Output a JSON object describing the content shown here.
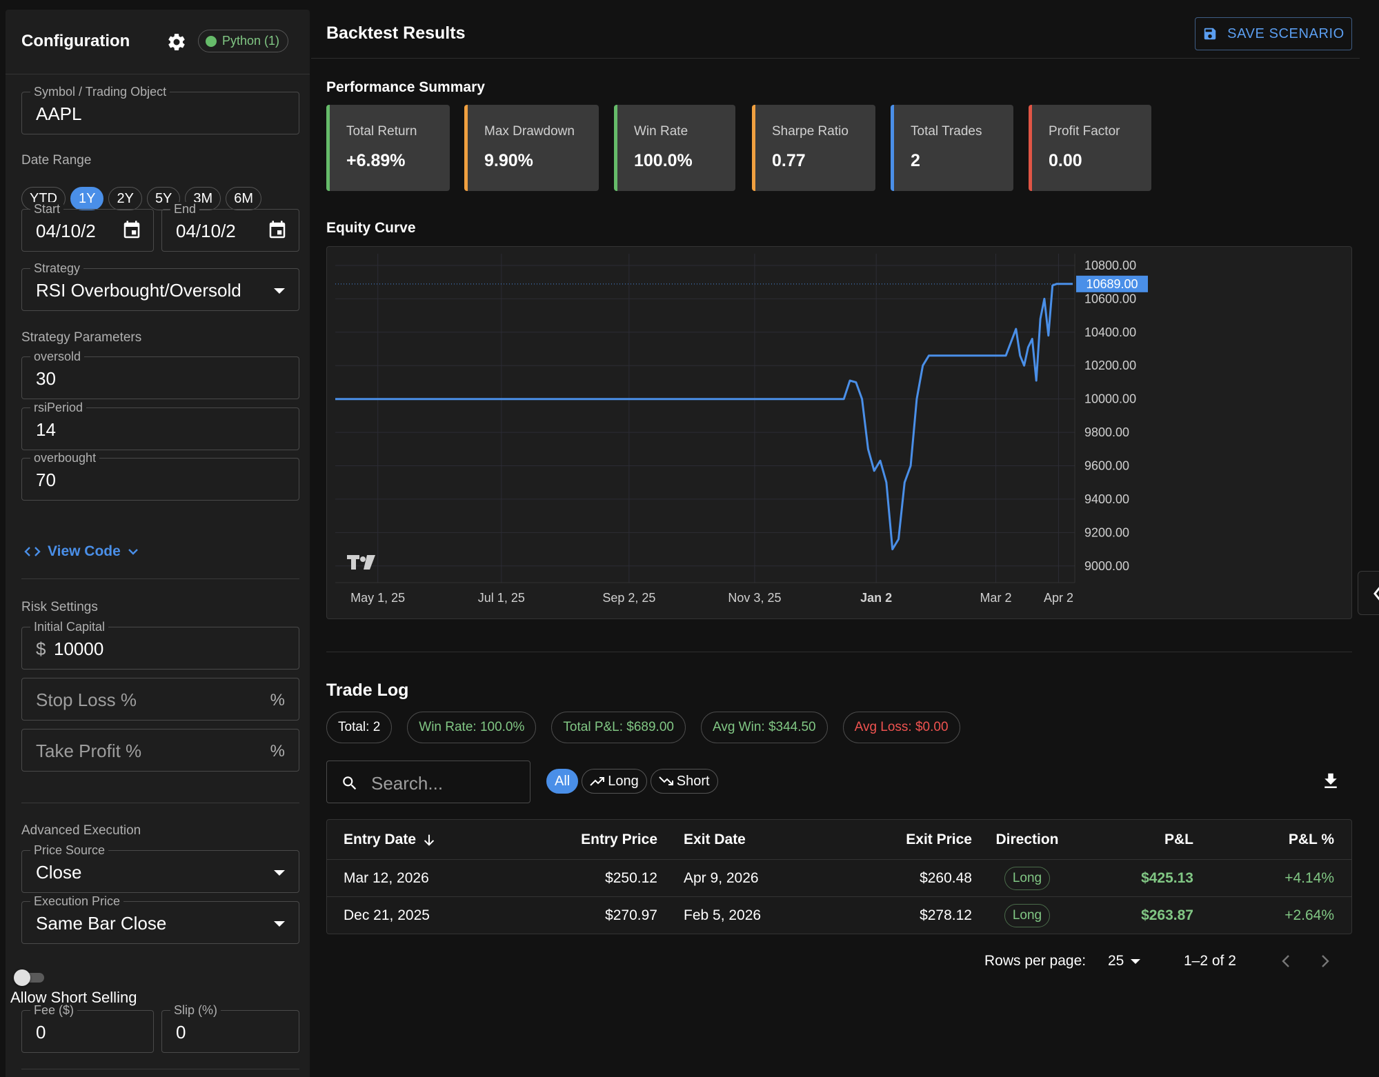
{
  "sidebar": {
    "title": "Configuration",
    "runtime_chip": "Python (1)",
    "symbol": {
      "label": "Symbol / Trading Object",
      "value": "AAPL"
    },
    "date_range": {
      "label": "Date Range",
      "presets": [
        "YTD",
        "1Y",
        "2Y",
        "5Y",
        "3M",
        "6M"
      ],
      "active_preset": "1Y",
      "start": {
        "label": "Start",
        "value": "04/10/2"
      },
      "end": {
        "label": "End",
        "value": "04/10/2"
      }
    },
    "strategy": {
      "label": "Strategy",
      "value": "RSI Overbought/Oversold"
    },
    "params_label": "Strategy Parameters",
    "params": [
      {
        "label": "oversold",
        "value": "30"
      },
      {
        "label": "rsiPeriod",
        "value": "14"
      },
      {
        "label": "overbought",
        "value": "70"
      }
    ],
    "view_code": "View Code",
    "risk": {
      "label": "Risk Settings",
      "initial_capital": {
        "label": "Initial Capital",
        "prefix": "$",
        "value": "10000"
      },
      "stop_loss": {
        "placeholder": "Stop Loss %",
        "suffix": "%"
      },
      "take_profit": {
        "placeholder": "Take Profit %",
        "suffix": "%"
      }
    },
    "advanced": {
      "label": "Advanced Execution",
      "price_source": {
        "label": "Price Source",
        "value": "Close"
      },
      "execution_price": {
        "label": "Execution Price",
        "value": "Same Bar Close"
      },
      "short_selling": {
        "label": "Allow Short Selling",
        "enabled": false
      },
      "fee": {
        "label": "Fee ($)",
        "value": "0"
      },
      "slip": {
        "label": "Slip (%)",
        "value": "0"
      }
    }
  },
  "main": {
    "title": "Backtest Results",
    "save_button": "SAVE SCENARIO",
    "performance_label": "Performance Summary",
    "kpis": [
      {
        "label": "Total Return",
        "value": "+6.89%",
        "color": "#66bb6a"
      },
      {
        "label": "Max Drawdown",
        "value": "9.90%",
        "color": "#f0a040"
      },
      {
        "label": "Win Rate",
        "value": "100.0%",
        "color": "#66bb6a"
      },
      {
        "label": "Sharpe Ratio",
        "value": "0.77",
        "color": "#f0a040"
      },
      {
        "label": "Total Trades",
        "value": "2",
        "color": "#4a8fe8"
      },
      {
        "label": "Profit Factor",
        "value": "0.00",
        "color": "#e05545"
      }
    ],
    "equity_label": "Equity Curve",
    "trade_log": {
      "title": "Trade Log",
      "stats": [
        {
          "label": "Total: 2",
          "color": "#ffffff"
        },
        {
          "label": "Win Rate: 100.0%",
          "color": "#81c784"
        },
        {
          "label": "Total P&L: $689.00",
          "color": "#81c784"
        },
        {
          "label": "Avg Win: $344.50",
          "color": "#81c784"
        },
        {
          "label": "Avg Loss: $0.00",
          "color": "#ef5350"
        }
      ],
      "search_placeholder": "Search...",
      "filters": [
        "All",
        "Long",
        "Short"
      ],
      "active_filter": "All",
      "columns": [
        "Entry Date",
        "Entry Price",
        "Exit Date",
        "Exit Price",
        "Direction",
        "P&L",
        "P&L %"
      ],
      "rows": [
        {
          "entry_date": "Mar 12, 2026",
          "entry_price": "$250.12",
          "exit_date": "Apr 9, 2026",
          "exit_price": "$260.48",
          "direction": "Long",
          "pnl": "$425.13",
          "pnl_pct": "+4.14%"
        },
        {
          "entry_date": "Dec 21, 2025",
          "entry_price": "$270.97",
          "exit_date": "Feb 5, 2026",
          "exit_price": "$278.12",
          "direction": "Long",
          "pnl": "$263.87",
          "pnl_pct": "+2.64%"
        }
      ],
      "pagination": {
        "rows_per_page_label": "Rows per page:",
        "rows_per_page": "25",
        "range": "1–2 of 2"
      }
    }
  },
  "chart_data": {
    "type": "line",
    "title": "",
    "xlabel": "",
    "ylabel": "",
    "x_ticks": [
      "May 1, 25",
      "Jul 1, 25",
      "Sep 2, 25",
      "Nov 3, 25",
      "Jan 2",
      "Mar 2",
      "Apr 2"
    ],
    "x_tick_dates": [
      "2025-05-01",
      "2025-07-01",
      "2025-09-02",
      "2025-11-03",
      "2026-01-02",
      "2026-03-02",
      "2026-04-02"
    ],
    "y_ticks": [
      "10800.00",
      "10600.00",
      "10400.00",
      "10200.00",
      "10000.00",
      "9800.00",
      "9600.00",
      "9400.00",
      "9200.00",
      "9000.00"
    ],
    "ylim": [
      8900,
      10870
    ],
    "xlim": [
      "2025-04-10",
      "2026-04-10"
    ],
    "last_value_label": "10689.00",
    "last_value": 10689,
    "line_color": "#4a8fe8",
    "grid": true,
    "series": [
      {
        "x": [
          "2025-04-10",
          "2025-12-17",
          "2025-12-20",
          "2025-12-23",
          "2025-12-26",
          "2025-12-29",
          "2026-01-01",
          "2026-01-04",
          "2026-01-07",
          "2026-01-10",
          "2026-01-13",
          "2026-01-16",
          "2026-01-19",
          "2026-01-22",
          "2026-01-25",
          "2026-01-28",
          "2026-01-31",
          "2026-02-03",
          "2026-02-05",
          "2026-02-08",
          "2026-02-11",
          "2026-02-14",
          "2026-02-17",
          "2026-02-21",
          "2026-02-28",
          "2026-03-07",
          "2026-03-12",
          "2026-03-14",
          "2026-03-16",
          "2026-03-18",
          "2026-03-20",
          "2026-03-22",
          "2026-03-24",
          "2026-03-26",
          "2026-03-28",
          "2026-03-30",
          "2026-04-01",
          "2026-04-03",
          "2026-04-05",
          "2026-04-06",
          "2026-04-08",
          "2026-04-09"
        ],
        "values": [
          10000,
          10000,
          10110,
          10100,
          10000,
          9700,
          9570,
          9630,
          9500,
          9100,
          9160,
          9500,
          9600,
          10000,
          10200,
          10260,
          10260,
          10260,
          10260,
          10260,
          10260,
          10260,
          10260,
          10260,
          10260,
          10260,
          10420,
          10260,
          10200,
          10310,
          10360,
          10110,
          10480,
          10600,
          10380,
          10680,
          10689,
          10689,
          10689,
          10689,
          10689,
          10689
        ]
      }
    ]
  }
}
